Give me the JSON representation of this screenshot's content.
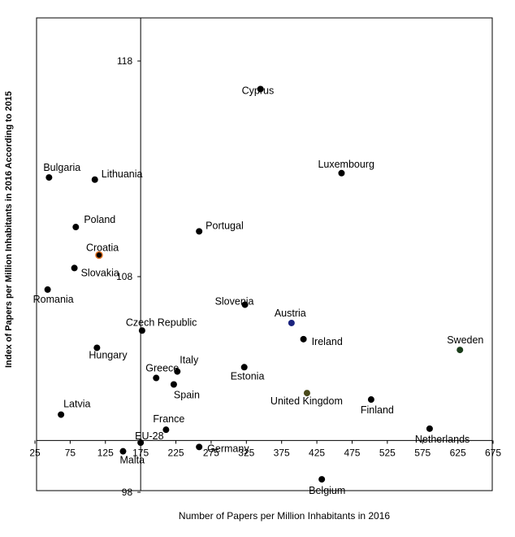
{
  "chart_data": {
    "type": "scatter",
    "title": "",
    "xlabel": "Number of Papers per Million Inhabitants in 2016",
    "ylabel": "Index of Papers per Million Inhabitants in 2016 According to 2015",
    "xlim": [
      25,
      675
    ],
    "ylim": [
      98,
      120
    ],
    "x_ticks": [
      25,
      75,
      125,
      175,
      225,
      275,
      325,
      375,
      425,
      475,
      525,
      575,
      625,
      675
    ],
    "x_tick_labels": [
      "25",
      "75",
      "125",
      "175",
      "225",
      "275",
      "325",
      "375",
      "425",
      "475",
      "525",
      "575",
      "625",
      "675"
    ],
    "y_tick_labels": [
      {
        "value": 118,
        "label": "118"
      },
      {
        "value": 108,
        "label": "108"
      },
      {
        "value": 98,
        "label": "98"
      }
    ],
    "x_axis_crosses_y": 100.4,
    "y_axis_crosses_x": 175,
    "grid": false,
    "point_color": "#000000",
    "points": [
      {
        "label": "Cyprus",
        "x": 345,
        "y": 116.7,
        "color": "#000000",
        "label_color": "#000000"
      },
      {
        "label": "Bulgaria",
        "x": 45,
        "y": 112.6,
        "color": "#000000",
        "label_color": "#000000"
      },
      {
        "label": "Lithuania",
        "x": 110,
        "y": 112.5,
        "color": "#000000",
        "label_color": "#000000"
      },
      {
        "label": "Luxembourg",
        "x": 460,
        "y": 112.8,
        "color": "#000000",
        "label_color": "#000000"
      },
      {
        "label": "Poland",
        "x": 83,
        "y": 110.3,
        "color": "#000000",
        "label_color": "#000000"
      },
      {
        "label": "Portugal",
        "x": 258,
        "y": 110.1,
        "color": "#000000",
        "label_color": "#000000"
      },
      {
        "label": "Croatia",
        "x": 116,
        "y": 109.0,
        "color": "#000000",
        "label_color": "#000000",
        "stroke": "#e07020"
      },
      {
        "label": "Slovakia",
        "x": 81,
        "y": 108.4,
        "color": "#000000",
        "label_color": "#000000"
      },
      {
        "label": "Romania",
        "x": 43,
        "y": 107.4,
        "color": "#000000",
        "label_color": "#000000"
      },
      {
        "label": "Slovenia",
        "x": 323,
        "y": 106.7,
        "color": "#000000",
        "label_color": "#ff0000"
      },
      {
        "label": "Austria",
        "x": 389,
        "y": 105.85,
        "color": "#1a237e",
        "label_color": "#000000"
      },
      {
        "label": "Ireland",
        "x": 406,
        "y": 105.1,
        "color": "#000000",
        "label_color": "#000000"
      },
      {
        "label": "Czech Republic",
        "x": 177,
        "y": 105.5,
        "color": "#000000",
        "label_color": "#000000"
      },
      {
        "label": "Sweden",
        "x": 628,
        "y": 104.6,
        "color": "#1b3d1b",
        "label_color": "#000000"
      },
      {
        "label": "Hungary",
        "x": 113,
        "y": 104.7,
        "color": "#000000",
        "label_color": "#000000"
      },
      {
        "label": "Italy",
        "x": 227,
        "y": 103.6,
        "color": "#000000",
        "label_color": "#000000"
      },
      {
        "label": "Greece",
        "x": 197,
        "y": 103.3,
        "color": "#000000",
        "label_color": "#000000"
      },
      {
        "label": "Estonia",
        "x": 322,
        "y": 103.8,
        "color": "#000000",
        "label_color": "#000000"
      },
      {
        "label": "Spain",
        "x": 222,
        "y": 103.0,
        "color": "#000000",
        "label_color": "#000000"
      },
      {
        "label": "United Kingdom",
        "x": 411,
        "y": 102.6,
        "color": "#4a4a1a",
        "label_color": "#000000"
      },
      {
        "label": "Finland",
        "x": 502,
        "y": 102.3,
        "color": "#000000",
        "label_color": "#000000"
      },
      {
        "label": "Latvia",
        "x": 62,
        "y": 101.6,
        "color": "#000000",
        "label_color": "#000000"
      },
      {
        "label": "France",
        "x": 211,
        "y": 100.9,
        "color": "#000000",
        "label_color": "#000000"
      },
      {
        "label": "Netherlands",
        "x": 585,
        "y": 100.95,
        "color": "#000000",
        "label_color": "#000000"
      },
      {
        "label": "EU-28",
        "x": 175,
        "y": 100.3,
        "color": "#000000",
        "label_color": "#f2b600"
      },
      {
        "label": "Malta",
        "x": 150,
        "y": 99.9,
        "color": "#000000",
        "label_color": "#000000"
      },
      {
        "label": "Germany",
        "x": 258,
        "y": 100.1,
        "color": "#000000",
        "label_color": "#000000"
      },
      {
        "label": "Belgium",
        "x": 432,
        "y": 98.6,
        "color": "#000000",
        "label_color": "#000000"
      }
    ]
  }
}
